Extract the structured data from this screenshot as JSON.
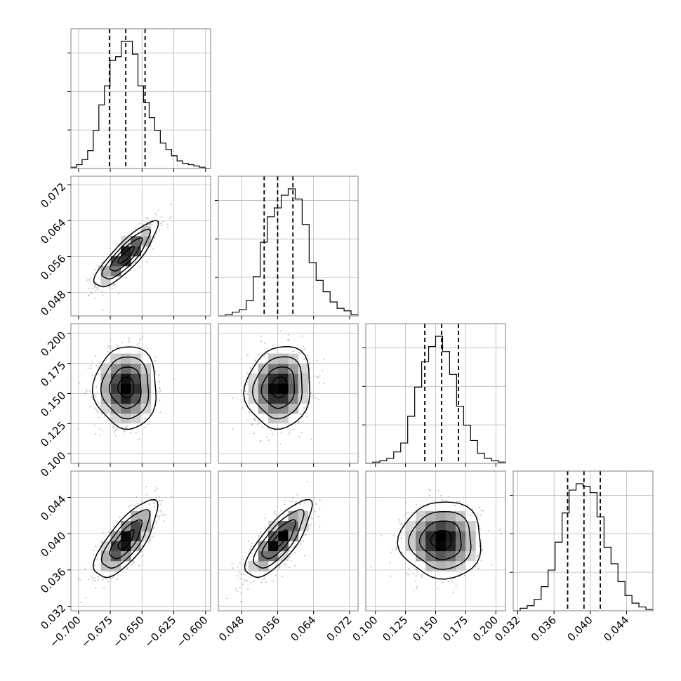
{
  "chart_data": {
    "type": "corner",
    "title": "",
    "colors": {
      "hist": "#000000",
      "contour": "#000000",
      "points": "#9a9a9a",
      "density_dark": "#000000",
      "density_light": "#ffffff",
      "grid": "#b8b8b8",
      "frame": "#7f7f7f"
    },
    "grid": true,
    "parameters": [
      {
        "range": [
          -0.706,
          -0.596
        ],
        "ticks": [
          "−0.700",
          "−0.675",
          "−0.650",
          "−0.625",
          "−0.600"
        ],
        "tick_values": [
          -0.7,
          -0.675,
          -0.65,
          -0.625,
          -0.6
        ],
        "quantiles": [
          -0.6757,
          -0.6628,
          -0.6476
        ],
        "mean": -0.6625,
        "sd": 0.0105
      },
      {
        "range": [
          0.0428,
          0.0739
        ],
        "ticks": [
          "0.048",
          "0.056",
          "0.064",
          "0.072"
        ],
        "tick_values": [
          0.048,
          0.056,
          0.064,
          0.072
        ],
        "quantiles": [
          0.053,
          0.056,
          0.0594
        ],
        "mean": 0.0563,
        "sd": 0.0031
      },
      {
        "range": [
          0.092,
          0.208
        ],
        "ticks": [
          "0.100",
          "0.125",
          "0.150",
          "0.175",
          "0.200"
        ],
        "tick_values": [
          0.1,
          0.125,
          0.15,
          0.175,
          0.2
        ],
        "quantiles": [
          0.141,
          0.155,
          0.169
        ],
        "mean": 0.155,
        "sd": 0.0145
      },
      {
        "range": [
          0.0315,
          0.0469
        ],
        "ticks": [
          "0.032",
          "0.036",
          "0.040",
          "0.044"
        ],
        "tick_values": [
          0.032,
          0.036,
          0.04,
          0.044
        ],
        "quantiles": [
          0.0375,
          0.0393,
          0.0411
        ],
        "mean": 0.0393,
        "sd": 0.0018
      }
    ],
    "correlations": [
      {
        "pair": [
          0,
          1
        ],
        "rho": 0.85
      },
      {
        "pair": [
          0,
          2
        ],
        "rho": 0.0
      },
      {
        "pair": [
          1,
          2
        ],
        "rho": 0.1
      },
      {
        "pair": [
          0,
          3
        ],
        "rho": 0.75
      },
      {
        "pair": [
          1,
          3
        ],
        "rho": 0.78
      },
      {
        "pair": [
          2,
          3
        ],
        "rho": 0.0
      }
    ],
    "histograms": [
      [
        1,
        3,
        7,
        14,
        30,
        50,
        65,
        85,
        88,
        100,
        100,
        90,
        65,
        52,
        40,
        30,
        20,
        15,
        10,
        6,
        4,
        3,
        2,
        1,
        0
      ],
      [
        0,
        1,
        3,
        5,
        12,
        31,
        58,
        78,
        85,
        95,
        100,
        92,
        72,
        42,
        28,
        19,
        11,
        6,
        4,
        1
      ],
      [
        0,
        1,
        2,
        4,
        9,
        16,
        37,
        60,
        80,
        92,
        100,
        88,
        70,
        45,
        30,
        18,
        8,
        4,
        2,
        1
      ],
      [
        0,
        2,
        4,
        9,
        19,
        32,
        54,
        77,
        95,
        100,
        98,
        93,
        74,
        50,
        37,
        23,
        12,
        6,
        3,
        1
      ]
    ],
    "contour_levels_sigma": [
      0.5,
      1.0,
      1.5,
      2.0
    ]
  }
}
